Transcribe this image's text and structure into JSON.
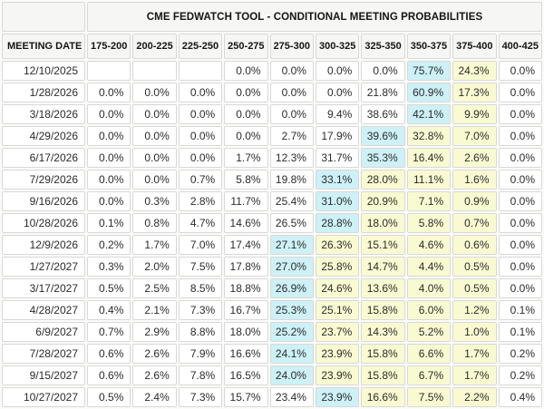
{
  "title": "CME FEDWATCH TOOL - CONDITIONAL MEETING PROBABILITIES",
  "date_header": "MEETING DATE",
  "rate_headers": [
    "175-200",
    "200-225",
    "225-250",
    "250-275",
    "275-300",
    "300-325",
    "325-350",
    "350-375",
    "375-400",
    "400-425"
  ],
  "colors": {
    "max_highlight": "#cdf1f7",
    "tail_highlight": "#fafad2",
    "header_bg": "#f6f6f4",
    "cell_bg": "#ffffff",
    "border": "#d8d8d6"
  },
  "rows": [
    {
      "date": "12/10/2025",
      "values": [
        "",
        "",
        "",
        "0.0%",
        "0.0%",
        "0.0%",
        "0.0%",
        "75.7%",
        "24.3%",
        "0.0%"
      ],
      "max_col": 7,
      "tail_cols": [
        8
      ]
    },
    {
      "date": "1/28/2026",
      "values": [
        "0.0%",
        "0.0%",
        "0.0%",
        "0.0%",
        "0.0%",
        "0.0%",
        "21.8%",
        "60.9%",
        "17.3%",
        "0.0%"
      ],
      "max_col": 7,
      "tail_cols": [
        8
      ]
    },
    {
      "date": "3/18/2026",
      "values": [
        "0.0%",
        "0.0%",
        "0.0%",
        "0.0%",
        "0.0%",
        "9.4%",
        "38.6%",
        "42.1%",
        "9.9%",
        "0.0%"
      ],
      "max_col": 7,
      "tail_cols": [
        8
      ]
    },
    {
      "date": "4/29/2026",
      "values": [
        "0.0%",
        "0.0%",
        "0.0%",
        "0.0%",
        "2.7%",
        "17.9%",
        "39.6%",
        "32.8%",
        "7.0%",
        "0.0%"
      ],
      "max_col": 6,
      "tail_cols": [
        7,
        8
      ]
    },
    {
      "date": "6/17/2026",
      "values": [
        "0.0%",
        "0.0%",
        "0.0%",
        "1.7%",
        "12.3%",
        "31.7%",
        "35.3%",
        "16.4%",
        "2.6%",
        "0.0%"
      ],
      "max_col": 6,
      "tail_cols": [
        7,
        8
      ]
    },
    {
      "date": "7/29/2026",
      "values": [
        "0.0%",
        "0.0%",
        "0.7%",
        "5.8%",
        "19.8%",
        "33.1%",
        "28.0%",
        "11.1%",
        "1.6%",
        "0.0%"
      ],
      "max_col": 5,
      "tail_cols": [
        6,
        7,
        8
      ]
    },
    {
      "date": "9/16/2026",
      "values": [
        "0.0%",
        "0.3%",
        "2.8%",
        "11.7%",
        "25.4%",
        "31.0%",
        "20.9%",
        "7.1%",
        "0.9%",
        "0.0%"
      ],
      "max_col": 5,
      "tail_cols": [
        6,
        7,
        8
      ]
    },
    {
      "date": "10/28/2026",
      "values": [
        "0.1%",
        "0.8%",
        "4.7%",
        "14.6%",
        "26.5%",
        "28.8%",
        "18.0%",
        "5.8%",
        "0.7%",
        "0.0%"
      ],
      "max_col": 5,
      "tail_cols": [
        6,
        7,
        8
      ]
    },
    {
      "date": "12/9/2026",
      "values": [
        "0.2%",
        "1.7%",
        "7.0%",
        "17.4%",
        "27.1%",
        "26.3%",
        "15.1%",
        "4.6%",
        "0.6%",
        "0.0%"
      ],
      "max_col": 4,
      "tail_cols": [
        5,
        6,
        7,
        8
      ]
    },
    {
      "date": "1/27/2027",
      "values": [
        "0.3%",
        "2.0%",
        "7.5%",
        "17.8%",
        "27.0%",
        "25.8%",
        "14.7%",
        "4.4%",
        "0.5%",
        "0.0%"
      ],
      "max_col": 4,
      "tail_cols": [
        5,
        6,
        7,
        8
      ]
    },
    {
      "date": "3/17/2027",
      "values": [
        "0.5%",
        "2.5%",
        "8.5%",
        "18.8%",
        "26.9%",
        "24.6%",
        "13.6%",
        "4.0%",
        "0.5%",
        "0.0%"
      ],
      "max_col": 4,
      "tail_cols": [
        5,
        6,
        7,
        8
      ]
    },
    {
      "date": "4/28/2027",
      "values": [
        "0.4%",
        "2.1%",
        "7.3%",
        "16.7%",
        "25.3%",
        "25.1%",
        "15.8%",
        "6.0%",
        "1.2%",
        "0.1%"
      ],
      "max_col": 4,
      "tail_cols": [
        5,
        6,
        7,
        8
      ]
    },
    {
      "date": "6/9/2027",
      "values": [
        "0.7%",
        "2.9%",
        "8.8%",
        "18.0%",
        "25.2%",
        "23.7%",
        "14.3%",
        "5.2%",
        "1.0%",
        "0.1%"
      ],
      "max_col": 4,
      "tail_cols": [
        5,
        6,
        7,
        8
      ]
    },
    {
      "date": "7/28/2027",
      "values": [
        "0.6%",
        "2.6%",
        "7.9%",
        "16.6%",
        "24.1%",
        "23.9%",
        "15.8%",
        "6.6%",
        "1.7%",
        "0.2%"
      ],
      "max_col": 4,
      "tail_cols": [
        5,
        6,
        7,
        8
      ]
    },
    {
      "date": "9/15/2027",
      "values": [
        "0.6%",
        "2.6%",
        "7.8%",
        "16.5%",
        "24.0%",
        "23.9%",
        "15.8%",
        "6.7%",
        "1.7%",
        "0.2%"
      ],
      "max_col": 4,
      "tail_cols": [
        5,
        6,
        7,
        8
      ]
    },
    {
      "date": "10/27/2027",
      "values": [
        "0.5%",
        "2.4%",
        "7.3%",
        "15.7%",
        "23.4%",
        "23.9%",
        "16.6%",
        "7.5%",
        "2.2%",
        "0.4%"
      ],
      "max_col": 5,
      "tail_cols": [
        6,
        7,
        8
      ]
    }
  ]
}
